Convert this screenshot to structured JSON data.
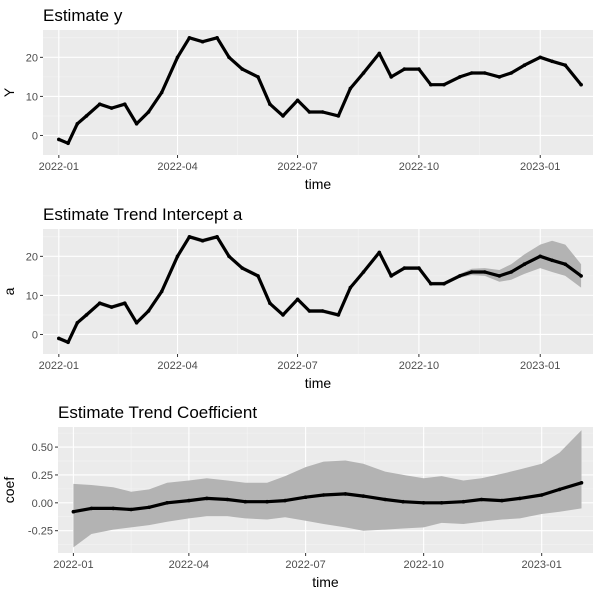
{
  "chart_data": [
    {
      "type": "line",
      "title": "Estimate y",
      "xlabel": "time",
      "ylabel": "Y",
      "x_ticks": [
        "2022-01",
        "2022-04",
        "2022-07",
        "2022-10",
        "2023-01"
      ],
      "y_ticks": [
        0,
        10,
        20
      ],
      "xlim": [
        "2021-12-20",
        "2023-02-10"
      ],
      "ylim": [
        -5,
        27
      ],
      "grid": true,
      "series": [
        {
          "x": [
            "2022-01-01",
            "2022-01-08",
            "2022-01-15",
            "2022-01-22",
            "2022-02-01",
            "2022-02-10",
            "2022-02-20",
            "2022-03-01",
            "2022-03-10",
            "2022-03-20",
            "2022-04-01",
            "2022-04-10",
            "2022-04-20",
            "2022-05-01",
            "2022-05-10",
            "2022-05-20",
            "2022-06-01",
            "2022-06-10",
            "2022-06-20",
            "2022-07-01",
            "2022-07-10",
            "2022-07-20",
            "2022-08-01",
            "2022-08-10",
            "2022-08-20",
            "2022-09-01",
            "2022-09-10",
            "2022-09-20",
            "2022-10-01",
            "2022-10-10",
            "2022-10-20",
            "2022-11-01",
            "2022-11-10",
            "2022-11-20",
            "2022-12-01",
            "2022-12-10",
            "2022-12-20",
            "2023-01-01",
            "2023-01-10",
            "2023-01-20",
            "2023-02-01"
          ],
          "y": [
            -1,
            -2,
            3,
            5,
            8,
            7,
            8,
            3,
            6,
            11,
            20,
            25,
            24,
            25,
            20,
            17,
            15,
            8,
            5,
            9,
            6,
            6,
            5,
            12,
            16,
            21,
            15,
            17,
            17,
            13,
            13,
            15,
            16,
            16,
            15,
            16,
            18,
            20,
            19,
            18,
            13
          ]
        }
      ]
    },
    {
      "type": "line",
      "title": "Estimate Trend Intercept a",
      "xlabel": "time",
      "ylabel": "a",
      "x_ticks": [
        "2022-01",
        "2022-04",
        "2022-07",
        "2022-10",
        "2023-01"
      ],
      "y_ticks": [
        0,
        10,
        20
      ],
      "xlim": [
        "2021-12-20",
        "2023-02-10"
      ],
      "ylim": [
        -5,
        27
      ],
      "grid": true,
      "series": [
        {
          "x": [
            "2022-01-01",
            "2022-01-08",
            "2022-01-15",
            "2022-01-22",
            "2022-02-01",
            "2022-02-10",
            "2022-02-20",
            "2022-03-01",
            "2022-03-10",
            "2022-03-20",
            "2022-04-01",
            "2022-04-10",
            "2022-04-20",
            "2022-05-01",
            "2022-05-10",
            "2022-05-20",
            "2022-06-01",
            "2022-06-10",
            "2022-06-20",
            "2022-07-01",
            "2022-07-10",
            "2022-07-20",
            "2022-08-01",
            "2022-08-10",
            "2022-08-20",
            "2022-09-01",
            "2022-09-10",
            "2022-09-20",
            "2022-10-01",
            "2022-10-10",
            "2022-10-20",
            "2022-11-01",
            "2022-11-10",
            "2022-11-20",
            "2022-12-01",
            "2022-12-10",
            "2022-12-20",
            "2023-01-01",
            "2023-01-10",
            "2023-01-20",
            "2023-02-01"
          ],
          "y": [
            -1,
            -2,
            3,
            5,
            8,
            7,
            8,
            3,
            6,
            11,
            20,
            25,
            24,
            25,
            20,
            17,
            15,
            8,
            5,
            9,
            6,
            6,
            5,
            12,
            16,
            21,
            15,
            17,
            17,
            13,
            13,
            15,
            16,
            16,
            15,
            16,
            18,
            20,
            19,
            18,
            15
          ],
          "lower": [
            -1.5,
            -2.5,
            2.5,
            4.5,
            7.5,
            6.5,
            7.5,
            2.5,
            5.5,
            10.5,
            19.5,
            24.5,
            23.5,
            24.5,
            19.5,
            16.5,
            14.5,
            7.5,
            4.5,
            8.5,
            5.5,
            5.5,
            4.5,
            11.5,
            15.5,
            20.5,
            14.5,
            16.5,
            16.5,
            12.5,
            12.5,
            14.5,
            15.2,
            15,
            13.5,
            14,
            15.5,
            17,
            16,
            15,
            12
          ],
          "upper": [
            -0.5,
            -1.5,
            3.5,
            5.5,
            8.5,
            7.5,
            8.5,
            3.5,
            6.5,
            11.5,
            20.5,
            25.5,
            24.5,
            25.5,
            20.5,
            17.5,
            15.5,
            8.5,
            5.5,
            9.5,
            6.5,
            6.5,
            5.5,
            12.5,
            16.5,
            21.5,
            15.5,
            17.5,
            17.5,
            13.5,
            13.5,
            15.5,
            16.8,
            17,
            16.5,
            18,
            20.5,
            23,
            24,
            23,
            18
          ]
        }
      ]
    },
    {
      "type": "line",
      "title": "Estimate Trend Coefficient",
      "xlabel": "time",
      "ylabel": "coef",
      "x_ticks": [
        "2022-01",
        "2022-04",
        "2022-07",
        "2022-10",
        "2023-01"
      ],
      "y_ticks": [
        -0.25,
        0.0,
        0.25,
        0.5
      ],
      "y_tick_labels": [
        "-0.25",
        "0.00",
        "0.25",
        "0.50"
      ],
      "xlim": [
        "2021-12-20",
        "2023-02-10"
      ],
      "ylim": [
        -0.45,
        0.68
      ],
      "grid": true,
      "series": [
        {
          "x": [
            "2022-01-01",
            "2022-01-15",
            "2022-02-01",
            "2022-02-15",
            "2022-03-01",
            "2022-03-15",
            "2022-04-01",
            "2022-04-15",
            "2022-05-01",
            "2022-05-15",
            "2022-06-01",
            "2022-06-15",
            "2022-07-01",
            "2022-07-15",
            "2022-08-01",
            "2022-08-15",
            "2022-09-01",
            "2022-09-15",
            "2022-10-01",
            "2022-10-15",
            "2022-11-01",
            "2022-11-15",
            "2022-12-01",
            "2022-12-15",
            "2023-01-01",
            "2023-01-15",
            "2023-02-01"
          ],
          "y": [
            -0.08,
            -0.05,
            -0.05,
            -0.06,
            -0.04,
            0.0,
            0.02,
            0.04,
            0.03,
            0.01,
            0.01,
            0.02,
            0.05,
            0.07,
            0.08,
            0.06,
            0.03,
            0.01,
            0.0,
            0.0,
            0.01,
            0.03,
            0.02,
            0.04,
            0.07,
            0.12,
            0.18
          ],
          "lower": [
            -0.4,
            -0.28,
            -0.24,
            -0.22,
            -0.2,
            -0.17,
            -0.14,
            -0.12,
            -0.12,
            -0.14,
            -0.15,
            -0.13,
            -0.16,
            -0.19,
            -0.22,
            -0.25,
            -0.24,
            -0.23,
            -0.22,
            -0.18,
            -0.19,
            -0.17,
            -0.15,
            -0.14,
            -0.1,
            -0.08,
            -0.05
          ],
          "upper": [
            0.17,
            0.16,
            0.14,
            0.1,
            0.12,
            0.18,
            0.2,
            0.22,
            0.2,
            0.18,
            0.18,
            0.24,
            0.32,
            0.37,
            0.38,
            0.35,
            0.28,
            0.25,
            0.22,
            0.24,
            0.2,
            0.22,
            0.26,
            0.3,
            0.35,
            0.45,
            0.65
          ]
        }
      ]
    }
  ]
}
